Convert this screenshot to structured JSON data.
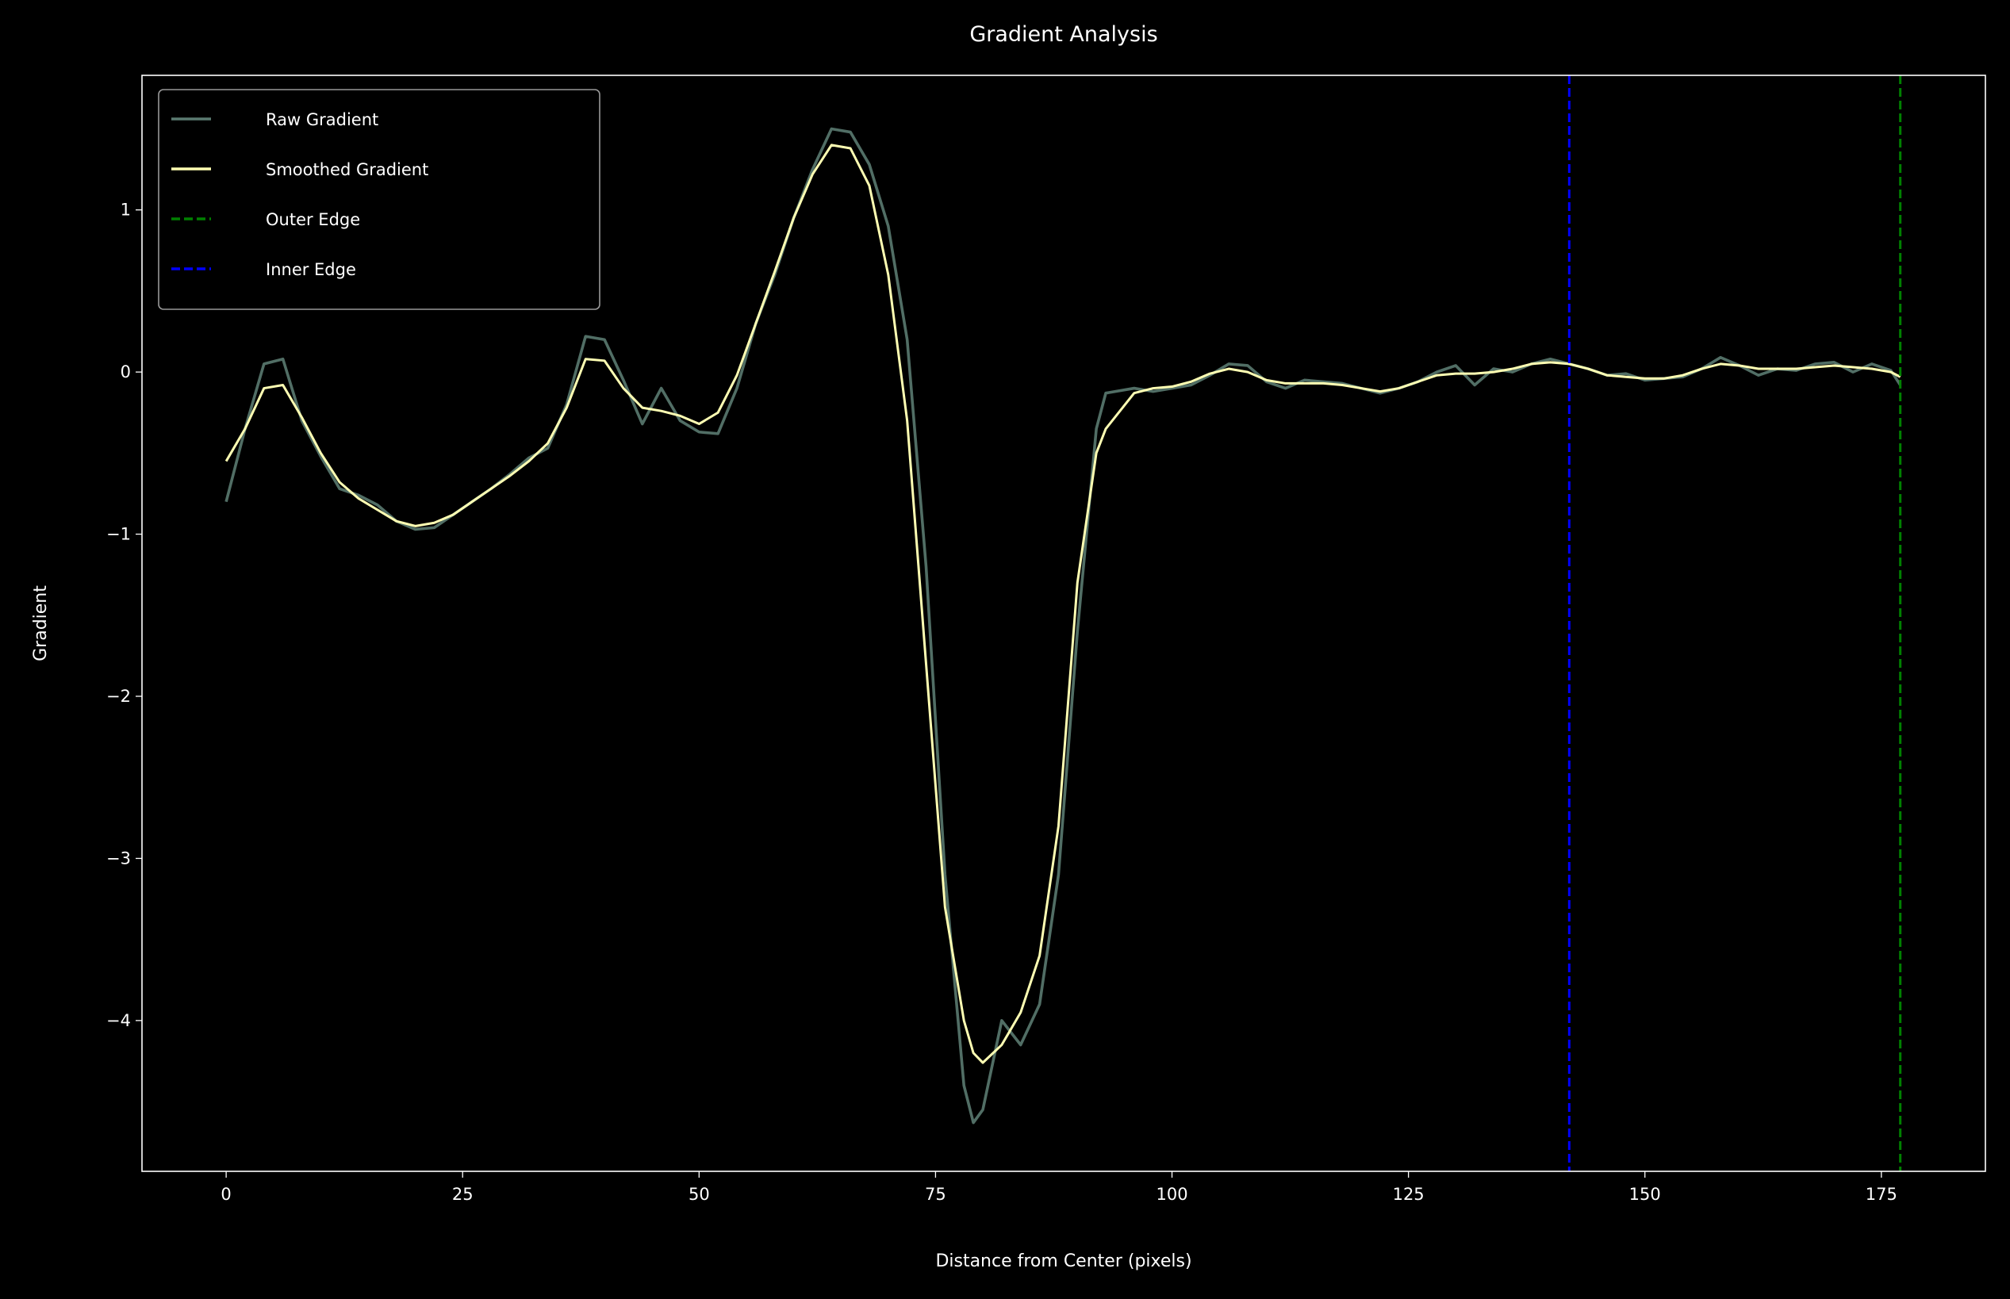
{
  "chart_data": {
    "type": "line",
    "title": "Gradient Analysis",
    "x_label": "Distance from Center (pixels)",
    "y_label": "Gradient",
    "x": [
      0,
      2,
      4,
      6,
      8,
      10,
      12,
      14,
      16,
      18,
      20,
      22,
      24,
      26,
      28,
      30,
      32,
      34,
      36,
      38,
      40,
      42,
      44,
      46,
      48,
      50,
      52,
      54,
      56,
      58,
      60,
      62,
      64,
      66,
      68,
      70,
      72,
      74,
      76,
      78,
      79,
      80,
      82,
      84,
      86,
      88,
      90,
      92,
      93,
      96,
      98,
      100,
      102,
      104,
      106,
      108,
      110,
      112,
      114,
      116,
      118,
      120,
      122,
      124,
      126,
      128,
      130,
      132,
      134,
      136,
      138,
      140,
      142,
      144,
      146,
      148,
      150,
      152,
      154,
      156,
      158,
      160,
      162,
      164,
      166,
      168,
      170,
      172,
      174,
      176,
      177
    ],
    "series": [
      {
        "name": "Raw Gradient",
        "color": "#5a7a70",
        "values": [
          -0.8,
          -0.35,
          0.05,
          0.08,
          -0.3,
          -0.52,
          -0.72,
          -0.76,
          -0.82,
          -0.92,
          -0.97,
          -0.96,
          -0.88,
          -0.8,
          -0.72,
          -0.63,
          -0.53,
          -0.47,
          -0.2,
          0.22,
          0.2,
          -0.05,
          -0.32,
          -0.1,
          -0.3,
          -0.37,
          -0.38,
          -0.1,
          0.3,
          0.6,
          0.95,
          1.25,
          1.5,
          1.48,
          1.28,
          0.9,
          0.2,
          -1.2,
          -3.1,
          -4.4,
          -4.63,
          -4.55,
          -4.0,
          -4.15,
          -3.9,
          -3.1,
          -1.6,
          -0.35,
          -0.13,
          -0.1,
          -0.12,
          -0.1,
          -0.08,
          -0.02,
          0.05,
          0.04,
          -0.06,
          -0.1,
          -0.05,
          -0.06,
          -0.07,
          -0.1,
          -0.13,
          -0.1,
          -0.06,
          0.0,
          0.04,
          -0.08,
          0.02,
          0.0,
          0.05,
          0.08,
          0.05,
          0.02,
          -0.02,
          -0.01,
          -0.05,
          -0.04,
          -0.03,
          0.02,
          0.09,
          0.04,
          -0.02,
          0.02,
          0.01,
          0.05,
          0.06,
          0.0,
          0.05,
          0.01,
          -0.08
        ]
      },
      {
        "name": "Smoothed Gradient",
        "color": "#ffffb3",
        "values": [
          -0.55,
          -0.35,
          -0.1,
          -0.08,
          -0.28,
          -0.5,
          -0.68,
          -0.78,
          -0.85,
          -0.92,
          -0.95,
          -0.93,
          -0.88,
          -0.8,
          -0.72,
          -0.64,
          -0.55,
          -0.44,
          -0.22,
          0.08,
          0.07,
          -0.1,
          -0.22,
          -0.24,
          -0.27,
          -0.32,
          -0.25,
          -0.02,
          0.3,
          0.62,
          0.95,
          1.22,
          1.4,
          1.38,
          1.15,
          0.6,
          -0.3,
          -1.8,
          -3.3,
          -4.0,
          -4.2,
          -4.26,
          -4.15,
          -3.95,
          -3.6,
          -2.8,
          -1.3,
          -0.5,
          -0.35,
          -0.13,
          -0.1,
          -0.09,
          -0.06,
          -0.01,
          0.02,
          0.0,
          -0.05,
          -0.07,
          -0.07,
          -0.07,
          -0.08,
          -0.1,
          -0.12,
          -0.1,
          -0.06,
          -0.02,
          -0.01,
          -0.01,
          0.0,
          0.02,
          0.05,
          0.06,
          0.05,
          0.02,
          -0.02,
          -0.03,
          -0.04,
          -0.04,
          -0.02,
          0.02,
          0.05,
          0.04,
          0.02,
          0.02,
          0.02,
          0.03,
          0.04,
          0.03,
          0.02,
          0.0,
          -0.03
        ]
      }
    ],
    "vlines": [
      {
        "name": "Outer Edge",
        "color": "#008000",
        "x": 177
      },
      {
        "name": "Inner Edge",
        "color": "#0000ff",
        "x": 142
      }
    ],
    "xlim": [
      -8.9,
      186
    ],
    "ylim": [
      -4.93,
      1.83
    ],
    "xticks": [
      0,
      25,
      50,
      75,
      100,
      125,
      150,
      175
    ],
    "yticks": [
      {
        "value": -4,
        "label": "−4"
      },
      {
        "value": -3,
        "label": "−3"
      },
      {
        "value": -2,
        "label": "−2"
      },
      {
        "value": -1,
        "label": "−1"
      },
      0,
      1
    ],
    "grid": false,
    "legend": "upper left"
  }
}
